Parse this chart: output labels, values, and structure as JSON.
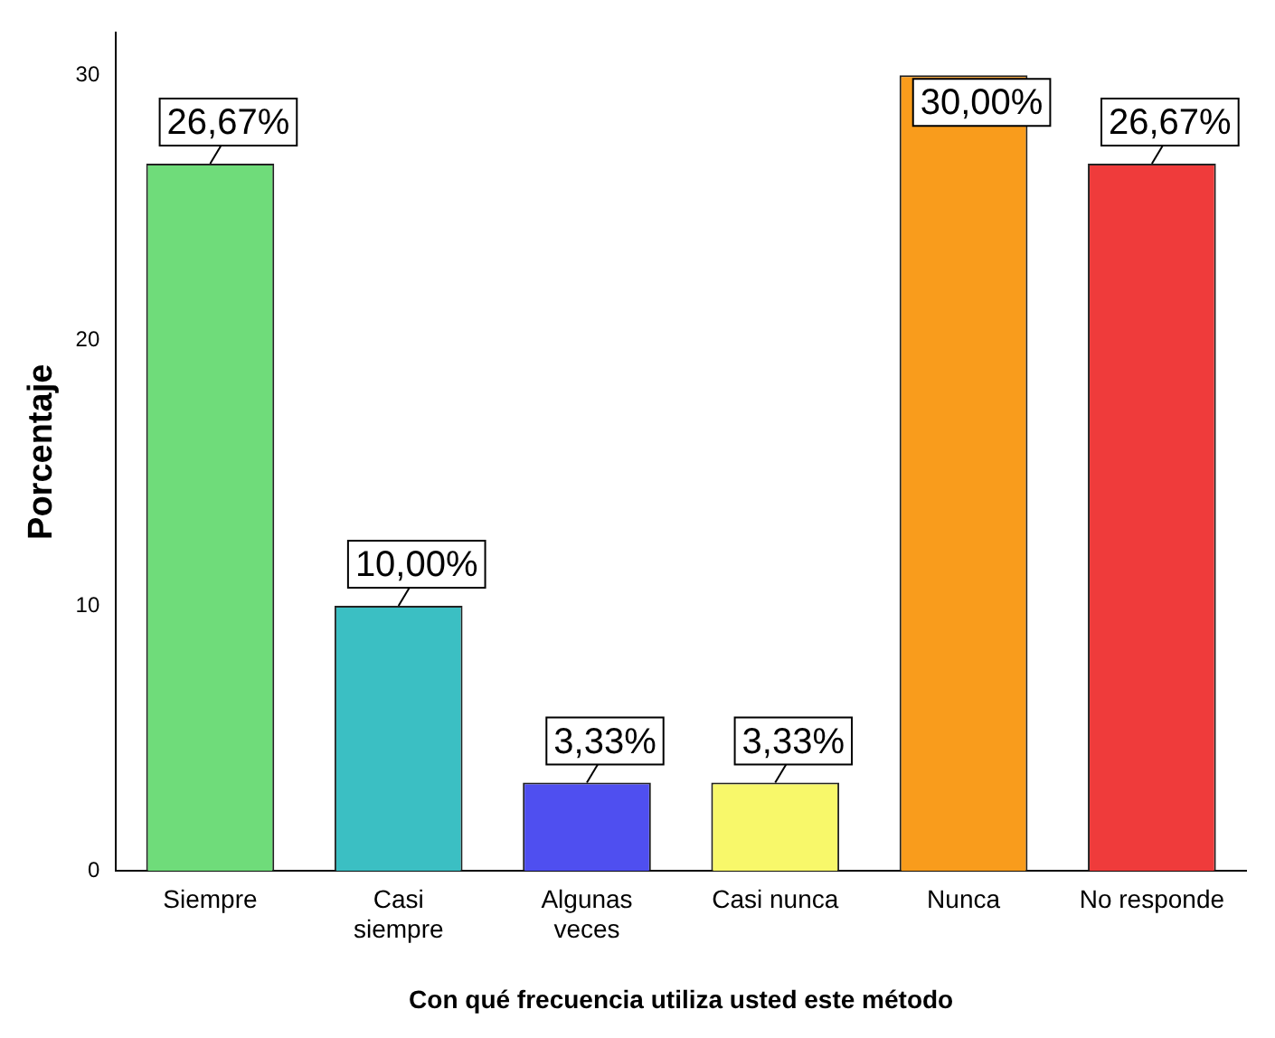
{
  "chart_data": {
    "type": "bar",
    "xlabel": "Con qué frecuencia utiliza usted este método",
    "ylabel": "Porcentaje",
    "categories": [
      "Siempre",
      "Casi siempre",
      "Algunas veces",
      "Casi nunca",
      "Nunca",
      "No responde"
    ],
    "values": [
      26.67,
      10.0,
      3.33,
      3.33,
      30.0,
      26.67
    ],
    "colors": [
      "#6fdc7a",
      "#3bbfc3",
      "#4f4ff0",
      "#f8f86a",
      "#f99c1c",
      "#ef3b3b"
    ],
    "value_labels": [
      "26,67%",
      "10,00%",
      "3,33%",
      "3,33%",
      "30,00%",
      "26,67%"
    ],
    "ylim": [
      0,
      31.6
    ],
    "yticks": [
      0,
      10,
      20,
      30
    ],
    "grid": false,
    "legend": false
  }
}
